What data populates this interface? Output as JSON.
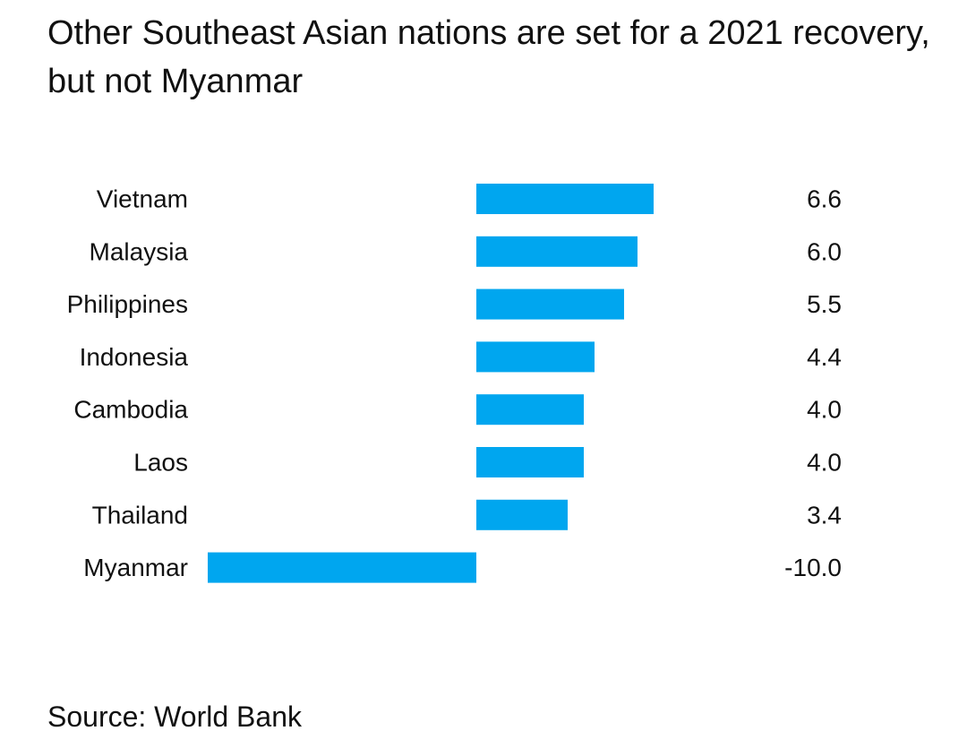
{
  "chart_data": {
    "type": "bar",
    "orientation": "horizontal",
    "title": "Other Southeast Asian nations are set for a 2021 recovery, but not Myanmar",
    "categories": [
      "Vietnam",
      "Malaysia",
      "Philippines",
      "Indonesia",
      "Cambodia",
      "Laos",
      "Thailand",
      "Myanmar"
    ],
    "values": [
      6.6,
      6.0,
      5.5,
      4.4,
      4.0,
      4.0,
      3.4,
      -10.0
    ],
    "value_labels": [
      "6.6",
      "6.0",
      "5.5",
      "4.4",
      "4.0",
      "4.0",
      "3.4",
      "-10.0"
    ],
    "xlim": [
      -10.0,
      6.6
    ],
    "bar_color": "#00a6ef",
    "grid": false,
    "legend": "none"
  },
  "source": "Source: World Bank"
}
